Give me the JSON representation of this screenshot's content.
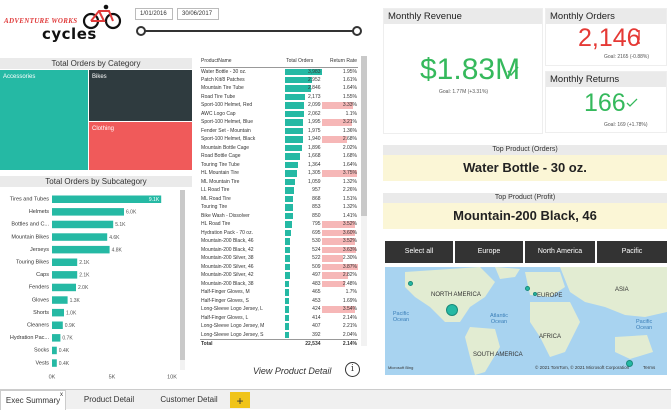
{
  "logo": {
    "top_text": "ADVENTURE WORKS",
    "main_text": "cycles"
  },
  "date_filter": {
    "start": "1/01/2016",
    "end": "30/06/2017"
  },
  "category_chart": {
    "title": "Total Orders by Category",
    "tiles": [
      {
        "label": "Accessories",
        "color": "#25b9a4"
      },
      {
        "label": "Bikes",
        "color": "#2f3b3f"
      },
      {
        "label": "Clothing",
        "color": "#f05a5a"
      }
    ]
  },
  "product_table": {
    "headers": {
      "name": "ProductName",
      "orders": "Total Orders",
      "rate": "Return Rate"
    },
    "rows": [
      {
        "name": "Water Bottle - 30 oz.",
        "orders": "3,983",
        "rate": "1.95%",
        "o": 3983,
        "r": 1.95
      },
      {
        "name": "Patch Kit/8 Patches",
        "orders": "2,952",
        "rate": "1.61%",
        "o": 2952,
        "r": 1.61
      },
      {
        "name": "Mountain Tire Tube",
        "orders": "2,846",
        "rate": "1.64%",
        "o": 2846,
        "r": 1.64
      },
      {
        "name": "Road Tire Tube",
        "orders": "2,173",
        "rate": "1.55%",
        "o": 2173,
        "r": 1.55
      },
      {
        "name": "Sport-100 Helmet, Red",
        "orders": "2,099",
        "rate": "3.33%",
        "o": 2099,
        "r": 3.33
      },
      {
        "name": "AWC Logo Cap",
        "orders": "2,062",
        "rate": "1.1%",
        "o": 2062,
        "r": 1.1
      },
      {
        "name": "Sport-100 Helmet, Blue",
        "orders": "1,995",
        "rate": "3.21%",
        "o": 1995,
        "r": 3.21
      },
      {
        "name": "Fender Set - Mountain",
        "orders": "1,975",
        "rate": "1.36%",
        "o": 1975,
        "r": 1.36
      },
      {
        "name": "Sport-100 Helmet, Black",
        "orders": "1,940",
        "rate": "2.68%",
        "o": 1940,
        "r": 2.68
      },
      {
        "name": "Mountain Bottle Cage",
        "orders": "1,896",
        "rate": "2.02%",
        "o": 1896,
        "r": 2.02
      },
      {
        "name": "Road Bottle Cage",
        "orders": "1,668",
        "rate": "1.68%",
        "o": 1668,
        "r": 1.68
      },
      {
        "name": "Touring Tire Tube",
        "orders": "1,364",
        "rate": "1.64%",
        "o": 1364,
        "r": 1.64
      },
      {
        "name": "HL Mountain Tire",
        "orders": "1,305",
        "rate": "3.75%",
        "o": 1305,
        "r": 3.75
      },
      {
        "name": "ML Mountain Tire",
        "orders": "1,059",
        "rate": "1.32%",
        "o": 1059,
        "r": 1.32
      },
      {
        "name": "LL Road Tire",
        "orders": "957",
        "rate": "2.26%",
        "o": 957,
        "r": 2.26
      },
      {
        "name": "ML Road Tire",
        "orders": "868",
        "rate": "1.51%",
        "o": 868,
        "r": 1.51
      },
      {
        "name": "Touring Tire",
        "orders": "853",
        "rate": "1.32%",
        "o": 853,
        "r": 1.32
      },
      {
        "name": "Bike Wash - Dissolver",
        "orders": "850",
        "rate": "1.41%",
        "o": 850,
        "r": 1.41
      },
      {
        "name": "HL Road Tire",
        "orders": "795",
        "rate": "3.52%",
        "o": 795,
        "r": 3.52
      },
      {
        "name": "Hydration Pack - 70 oz.",
        "orders": "695",
        "rate": "3.60%",
        "o": 695,
        "r": 3.6
      },
      {
        "name": "Mountain-200 Black, 46",
        "orders": "530",
        "rate": "3.52%",
        "o": 530,
        "r": 3.52
      },
      {
        "name": "Mountain-200 Black, 42",
        "orders": "524",
        "rate": "3.63%",
        "o": 524,
        "r": 3.63
      },
      {
        "name": "Mountain-200 Silver, 38",
        "orders": "522",
        "rate": "2.30%",
        "o": 522,
        "r": 2.3
      },
      {
        "name": "Mountain-200 Silver, 46",
        "orders": "509",
        "rate": "3.87%",
        "o": 509,
        "r": 3.87
      },
      {
        "name": "Mountain-200 Silver, 42",
        "orders": "497",
        "rate": "2.82%",
        "o": 497,
        "r": 2.82
      },
      {
        "name": "Mountain-200 Black, 38",
        "orders": "483",
        "rate": "2.48%",
        "o": 483,
        "r": 2.48
      },
      {
        "name": "Half-Finger Gloves, M",
        "orders": "465",
        "rate": "1.7%",
        "o": 465,
        "r": 1.7
      },
      {
        "name": "Half-Finger Gloves, S",
        "orders": "453",
        "rate": "1.69%",
        "o": 453,
        "r": 1.69
      },
      {
        "name": "Long-Sleeve Logo Jersey, L",
        "orders": "424",
        "rate": "3.54%",
        "o": 424,
        "r": 3.54
      },
      {
        "name": "Half-Finger Gloves, L",
        "orders": "414",
        "rate": "2.14%",
        "o": 414,
        "r": 2.14
      },
      {
        "name": "Long-Sleeve Logo Jersey, M",
        "orders": "407",
        "rate": "2.21%",
        "o": 407,
        "r": 2.21
      },
      {
        "name": "Long-Sleeve Logo Jersey, S",
        "orders": "392",
        "rate": "2.04%",
        "o": 392,
        "r": 2.04
      }
    ],
    "total_label": "Total",
    "total_orders": "22,534",
    "total_rate": "2.14%"
  },
  "view_detail_label": "View Product Detail",
  "info_icon_glyph": "i",
  "chart_data": {
    "type": "bar",
    "title": "Total Orders by Subcategory",
    "orientation": "horizontal",
    "categories": [
      "Tires and Tubes",
      "Helmets",
      "Bottles and C...",
      "Mountain Bikes",
      "Jerseys",
      "Touring Bikes",
      "Caps",
      "Fenders",
      "Gloves",
      "Shorts",
      "Cleaners",
      "Hydration Pac...",
      "Socks",
      "Vests"
    ],
    "values": [
      9100,
      6000,
      5100,
      4600,
      4800,
      2100,
      2100,
      2000,
      1300,
      1000,
      900,
      700,
      400,
      400
    ],
    "value_labels": [
      "9.1K",
      "6.0K",
      "5.1K",
      "4.6K",
      "4.8K",
      "2.1K",
      "2.1K",
      "2.0K",
      "1.3K",
      "1.0K",
      "0.9K",
      "0.7K",
      "0.4K",
      "0.4K"
    ],
    "xlim": [
      0,
      10000
    ],
    "ticks": [
      "0K",
      "5K",
      "10K"
    ],
    "tick_values": [
      0,
      5000,
      10000
    ],
    "color": "#25b9a4"
  },
  "kpis": {
    "revenue": {
      "title": "Monthly Revenue",
      "value": "$1.83M",
      "goal": "Goal: 1.77M (+3.31%)",
      "color": "#35b95c"
    },
    "orders": {
      "title": "Monthly Orders",
      "value": "2,146",
      "goal": "Goal: 2165 (-0.88%)",
      "color": "#e53935"
    },
    "returns": {
      "title": "Monthly Returns",
      "value": "166",
      "goal": "Goal: 169 (+1.78%)",
      "color": "#35b95c"
    }
  },
  "top_product_orders": {
    "title": "Top Product (Orders)",
    "value": "Water Bottle - 30 oz."
  },
  "top_product_profit": {
    "title": "Top Product (Profit)",
    "value": "Mountain-200 Black, 46"
  },
  "regions": [
    "Select all",
    "Europe",
    "North America",
    "Pacific"
  ],
  "map": {
    "labels": {
      "na": "NORTH AMERICA",
      "eu": "EUROPE",
      "asia": "ASIA",
      "pacific_ocean": "Pacific Ocean",
      "atlantic_ocean": "Atlantic Ocean",
      "south_america": "SOUTH AMERICA",
      "africa": "AFRICA",
      "pacific_ocean_2": "Pacific Ocean"
    },
    "attribution": "© 2021 TomTom, © 2021 Microsoft Corporation",
    "terms": "Terms",
    "bing": "Microsoft Bing"
  },
  "tabs": [
    {
      "label": "Exec Summary",
      "active": true
    },
    {
      "label": "Product Detail",
      "active": false
    },
    {
      "label": "Customer Detail",
      "active": false
    }
  ],
  "tab_close_glyph": "x",
  "add_tab_glyph": "+"
}
